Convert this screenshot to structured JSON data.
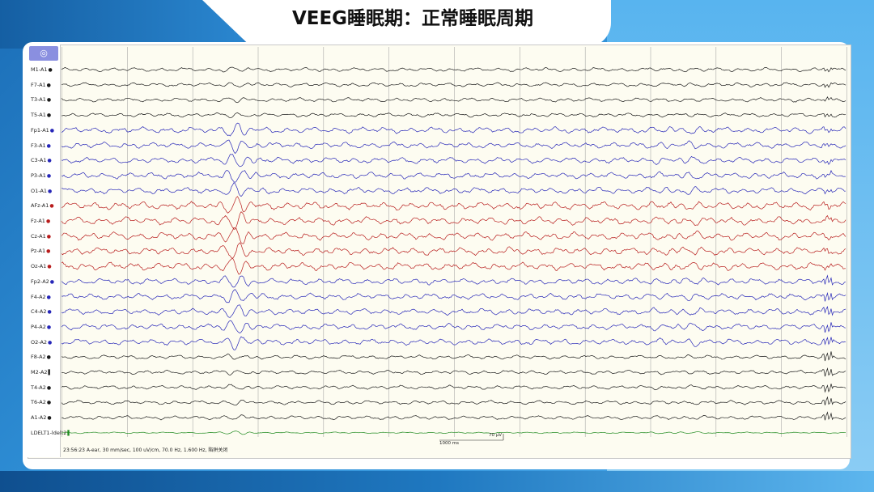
{
  "slide": {
    "title": "VEEG睡眠期：正常睡眠周期"
  },
  "viewer": {
    "tool_icon": "◎",
    "status_text": "23:56:23 A-ear, 30 mm/sec, 100 uV/cm, 70.0 Hz, 1.600 Hz, 陷阱关闭",
    "time_scale_label": "1000 ms",
    "amp_scale_label": "70 μV"
  },
  "colors": {
    "black": "#1a1a1a",
    "blue": "#2626b8",
    "red": "#b81c1c",
    "green": "#1f8a1f",
    "grid": "#9a9a9a"
  },
  "chart_data": {
    "type": "line",
    "title": "",
    "xlabel": "",
    "ylabel": "",
    "grid": true,
    "series": [
      {
        "name": "M1-A1",
        "color": "black",
        "marker": "●"
      },
      {
        "name": "F7-A1",
        "color": "black",
        "marker": "●"
      },
      {
        "name": "T3-A1",
        "color": "black",
        "marker": "●"
      },
      {
        "name": "T5-A1",
        "color": "black",
        "marker": "●"
      },
      {
        "name": "Fp1-A1",
        "color": "blue",
        "marker": "●"
      },
      {
        "name": "F3-A1",
        "color": "blue",
        "marker": "●"
      },
      {
        "name": "C3-A1",
        "color": "blue",
        "marker": "●"
      },
      {
        "name": "P3-A1",
        "color": "blue",
        "marker": "●"
      },
      {
        "name": "O1-A1",
        "color": "blue",
        "marker": "●"
      },
      {
        "name": "AFz-A1",
        "color": "red",
        "marker": "●"
      },
      {
        "name": "Fz-A1",
        "color": "red",
        "marker": "●"
      },
      {
        "name": "Cz-A1",
        "color": "red",
        "marker": "●"
      },
      {
        "name": "Pz-A1",
        "color": "red",
        "marker": "●"
      },
      {
        "name": "Oz-A1",
        "color": "red",
        "marker": "●"
      },
      {
        "name": "Fp2-A2",
        "color": "blue",
        "marker": "●"
      },
      {
        "name": "F4-A2",
        "color": "blue",
        "marker": "●"
      },
      {
        "name": "C4-A2",
        "color": "blue",
        "marker": "●"
      },
      {
        "name": "P4-A2",
        "color": "blue",
        "marker": "●"
      },
      {
        "name": "O2-A2",
        "color": "blue",
        "marker": "●"
      },
      {
        "name": "F8-A2",
        "color": "black",
        "marker": "●"
      },
      {
        "name": "M2-A2",
        "color": "black",
        "marker": "▌"
      },
      {
        "name": "T4-A2",
        "color": "black",
        "marker": "●"
      },
      {
        "name": "T6-A2",
        "color": "black",
        "marker": "●"
      },
      {
        "name": "A1-A2",
        "color": "black",
        "marker": "●"
      },
      {
        "name": "LDELT1-ldelt2",
        "color": "green",
        "marker": "▌"
      }
    ]
  }
}
